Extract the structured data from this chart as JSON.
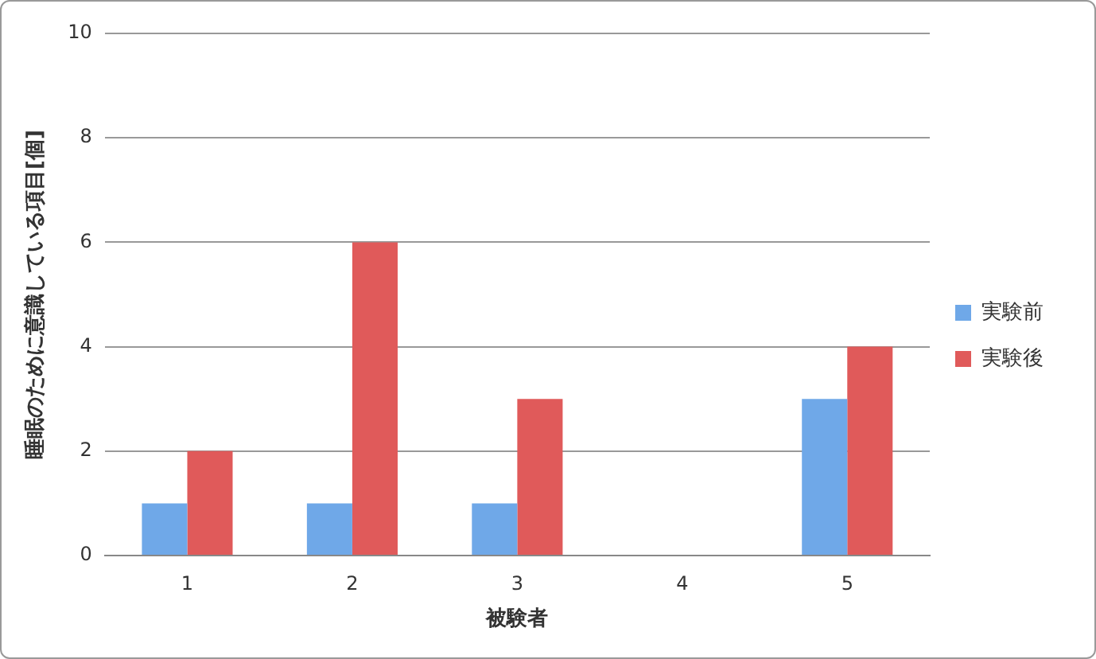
{
  "chart_data": {
    "type": "bar",
    "xlabel": "被験者",
    "ylabel": "睡眠のために意識している項目[個]",
    "categories": [
      "1",
      "2",
      "3",
      "4",
      "5"
    ],
    "series": [
      {
        "name": "実験前",
        "color": "#6fa8e8",
        "values": [
          1,
          1,
          1,
          0,
          3
        ]
      },
      {
        "name": "実験後",
        "color": "#e05a5a",
        "values": [
          2,
          6,
          3,
          0,
          4
        ]
      }
    ],
    "ylim": [
      0,
      10
    ],
    "yticks": [
      0,
      2,
      4,
      6,
      8,
      10
    ],
    "grid": "y",
    "legend": "right"
  }
}
